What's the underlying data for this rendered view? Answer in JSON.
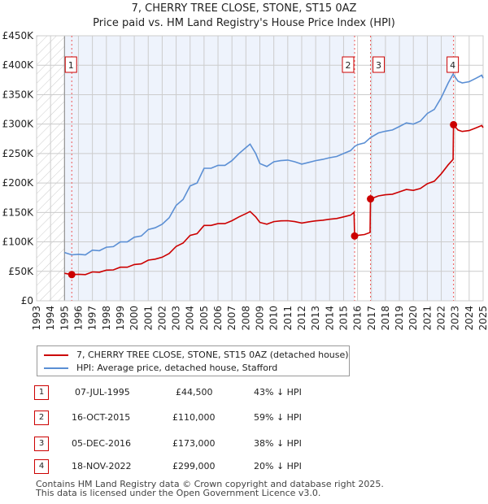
{
  "chart_data": {
    "type": "line",
    "title": "7, CHERRY TREE CLOSE, STONE, ST15 0AZ",
    "subtitle": "Price paid vs. HM Land Registry's House Price Index (HPI)",
    "xlim": [
      1993,
      2025
    ],
    "ylim": [
      0,
      450000
    ],
    "yticks": [
      {
        "v": 0,
        "label": "£0"
      },
      {
        "v": 50000,
        "label": "£50K"
      },
      {
        "v": 100000,
        "label": "£100K"
      },
      {
        "v": 150000,
        "label": "£150K"
      },
      {
        "v": 200000,
        "label": "£200K"
      },
      {
        "v": 250000,
        "label": "£250K"
      },
      {
        "v": 300000,
        "label": "£300K"
      },
      {
        "v": 350000,
        "label": "£350K"
      },
      {
        "v": 400000,
        "label": "£400K"
      },
      {
        "v": 450000,
        "label": "£450K"
      }
    ],
    "xticks": [
      "1993",
      "1994",
      "1995",
      "1996",
      "1997",
      "1998",
      "1999",
      "2000",
      "2001",
      "2002",
      "2003",
      "2004",
      "2005",
      "2006",
      "2007",
      "2008",
      "2009",
      "2010",
      "2011",
      "2012",
      "2013",
      "2014",
      "2015",
      "2016",
      "2017",
      "2018",
      "2019",
      "2020",
      "2021",
      "2022",
      "2023",
      "2024",
      "2025"
    ],
    "grid": true,
    "colors": {
      "property": "#cc0000",
      "hpi": "#5b8fd4",
      "shade": "#eef3fc"
    },
    "series": [
      {
        "name": "7, CHERRY TREE CLOSE, STONE, ST15 0AZ (detached house)",
        "key": "property",
        "x": [
          1995.0,
          1995.52,
          1996.0,
          1996.5,
          1997.0,
          1997.5,
          1998.0,
          1998.5,
          1999.0,
          1999.5,
          2000.0,
          2000.5,
          2001.0,
          2001.5,
          2002.0,
          2002.5,
          2003.0,
          2003.5,
          2004.0,
          2004.5,
          2005.0,
          2005.5,
          2006.0,
          2006.5,
          2007.0,
          2007.5,
          2008.0,
          2008.3,
          2008.7,
          2009.0,
          2009.5,
          2010.0,
          2010.5,
          2011.0,
          2011.5,
          2012.0,
          2012.5,
          2013.0,
          2013.5,
          2014.0,
          2014.5,
          2015.0,
          2015.5,
          2015.75,
          2015.79,
          2016.0,
          2016.5,
          2016.9,
          2016.93,
          2017.5,
          2018.0,
          2018.5,
          2019.0,
          2019.5,
          2020.0,
          2020.5,
          2021.0,
          2021.5,
          2022.0,
          2022.5,
          2022.85,
          2022.88,
          2023.2,
          2023.5,
          2024.0,
          2024.5,
          2024.9,
          2025.0
        ],
        "y": [
          46700,
          44500,
          45000,
          44500,
          49000,
          48500,
          52000,
          52500,
          57000,
          57000,
          61500,
          62700,
          69000,
          70700,
          74000,
          80400,
          92300,
          98000,
          111000,
          114000,
          128000,
          128000,
          131000,
          131000,
          136000,
          142500,
          148000,
          151600,
          142500,
          133000,
          130000,
          134500,
          135700,
          136000,
          134500,
          132000,
          134000,
          135700,
          136800,
          138500,
          139700,
          142500,
          145400,
          150000,
          110000,
          111000,
          112500,
          116000,
          173000,
          178000,
          180000,
          181000,
          185000,
          189000,
          187500,
          190600,
          198800,
          203000,
          215600,
          231000,
          240000,
          299000,
          290000,
          287500,
          289000,
          293700,
          297600,
          294000
        ]
      },
      {
        "name": "HPI: Average price, detached house, Stafford",
        "key": "hpi",
        "x": [
          1995.0,
          1995.52,
          1996.0,
          1996.5,
          1997.0,
          1997.5,
          1998.0,
          1998.5,
          1999.0,
          1999.5,
          2000.0,
          2000.5,
          2001.0,
          2001.5,
          2002.0,
          2002.5,
          2003.0,
          2003.5,
          2004.0,
          2004.5,
          2005.0,
          2005.5,
          2006.0,
          2006.5,
          2007.0,
          2007.5,
          2008.0,
          2008.3,
          2008.7,
          2009.0,
          2009.5,
          2010.0,
          2010.5,
          2011.0,
          2011.5,
          2012.0,
          2012.5,
          2013.0,
          2013.5,
          2014.0,
          2014.5,
          2015.0,
          2015.5,
          2015.79,
          2016.0,
          2016.5,
          2016.93,
          2017.5,
          2018.0,
          2018.5,
          2019.0,
          2019.5,
          2020.0,
          2020.5,
          2021.0,
          2021.5,
          2022.0,
          2022.5,
          2022.85,
          2023.2,
          2023.5,
          2024.0,
          2024.5,
          2024.9,
          2025.0
        ],
        "y": [
          82000,
          78000,
          79000,
          78000,
          86000,
          85000,
          91000,
          92000,
          100000,
          100000,
          108000,
          110000,
          121000,
          124000,
          130000,
          141000,
          162000,
          172000,
          195000,
          200000,
          225000,
          225000,
          230000,
          230000,
          238000,
          250000,
          260000,
          266000,
          250000,
          233000,
          228000,
          236000,
          238000,
          239000,
          236000,
          232000,
          235000,
          238000,
          240000,
          243000,
          245000,
          250000,
          255000,
          262000,
          265000,
          268000,
          277000,
          285000,
          288000,
          290000,
          296000,
          302000,
          300000,
          305000,
          318000,
          325000,
          345000,
          370000,
          385000,
          373000,
          370000,
          372000,
          378000,
          383000,
          378000
        ]
      }
    ],
    "sales": [
      {
        "n": "1",
        "date": "07-JUL-1995",
        "x": 1995.52,
        "price": 44500,
        "price_label": "£44,500",
        "hpi": "43% ↓ HPI"
      },
      {
        "n": "2",
        "date": "16-OCT-2015",
        "x": 2015.79,
        "price": 110000,
        "price_label": "£110,000",
        "hpi": "59% ↓ HPI"
      },
      {
        "n": "3",
        "date": "05-DEC-2016",
        "x": 2016.93,
        "price": 173000,
        "price_label": "£173,000",
        "hpi": "38% ↓ HPI"
      },
      {
        "n": "4",
        "date": "18-NOV-2022",
        "x": 2022.88,
        "price": 299000,
        "price_label": "£299,000",
        "hpi": "20% ↓ HPI"
      }
    ],
    "legend_position": "below"
  },
  "footer": [
    "Contains HM Land Registry data © Crown copyright and database right 2025.",
    "This data is licensed under the Open Government Licence v3.0."
  ]
}
